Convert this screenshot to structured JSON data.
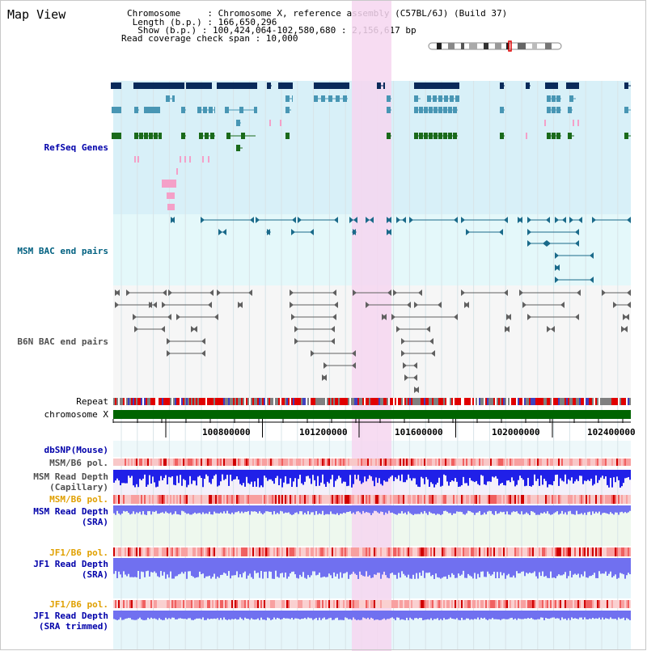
{
  "page": {
    "title": "Map View"
  },
  "info": {
    "chromosome": "Chromosome     : Chromosome X, reference assembly (C57BL/6J) (Build 37)",
    "length": " Length (b.p.) : 166,650,296",
    "show": "  Show (b.p.) : 100,424,064-102,580,680 : 2,156,617 bp",
    "coverage": "Read coverage check span : 10,000"
  },
  "tracks": {
    "refseq": {
      "label": "RefSeq Genes",
      "color": "#0000aa"
    },
    "msm_bac": {
      "label": "MSM BAC end pairs",
      "color": "#006080"
    },
    "b6n_bac": {
      "label": "B6N BAC end pairs",
      "color": "#505050"
    },
    "repeat": {
      "label": "Repeat"
    },
    "chromosome": {
      "label": "chromosome X"
    },
    "dbsnp": {
      "label": "dbSNP(Mouse)"
    },
    "msm_pol": {
      "label": "MSM/B6 pol."
    },
    "msm_depth_cap": {
      "label": "MSM Read Depth\n(Capillary)"
    },
    "msm_pol2": {
      "label": "MSM/B6 pol."
    },
    "msm_depth_sra": {
      "label": "MSM Read Depth\n(SRA)"
    },
    "jf1_pol": {
      "label": "JF1/B6 pol."
    },
    "jf1_depth_sra": {
      "label": "JF1 Read Depth\n(SRA)"
    },
    "jf1_pol2": {
      "label": "JF1/B6 pol."
    },
    "jf1_depth_trim": {
      "label": "JF1 Read Depth\n(SRA trimmed)"
    }
  },
  "axis": {
    "ticks": [
      "100800000",
      "101200000",
      "101600000",
      "102000000",
      "102400000"
    ]
  },
  "colors": {
    "highlight": "#f6d6f0",
    "refseq_bg": "#d8f0f8",
    "bac_bg": "#e4f8fa",
    "chrom_green": "#006400",
    "gene_navy": "#0a2a5a",
    "gene_teal": "#4896b4",
    "gene_green": "#1a6a1a",
    "pink": "#f4a0c8",
    "depth_blue": "#2020e8",
    "depth_blue_light": "#7070f0"
  }
}
